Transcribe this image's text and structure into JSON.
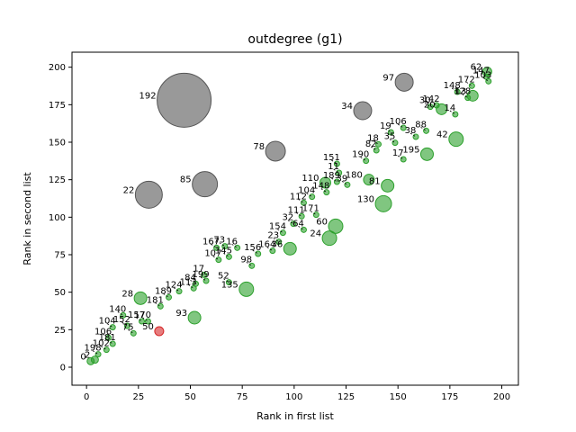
{
  "chart_data": {
    "type": "scatter",
    "title": "outdegree (g1)",
    "xlabel": "Rank in first list",
    "ylabel": "Rank in second list",
    "xlim": [
      -7,
      208
    ],
    "ylim": [
      -12,
      210
    ],
    "xticks": [
      0,
      25,
      50,
      75,
      100,
      125,
      150,
      175,
      200
    ],
    "yticks": [
      0,
      25,
      50,
      75,
      100,
      125,
      150,
      175,
      200
    ],
    "grid": false,
    "legend": "none",
    "colors": {
      "green": "#2ca02c",
      "gray": "#555555",
      "red": "#d62728",
      "connector": "#000000"
    },
    "labeled_points": [
      {
        "label": "192",
        "x": 47,
        "y": 178,
        "size": 30,
        "color": "gray"
      },
      {
        "label": "22",
        "x": 30,
        "y": 115,
        "size": 15,
        "color": "gray"
      },
      {
        "label": "85",
        "x": 57,
        "y": 122,
        "size": 14,
        "color": "gray"
      },
      {
        "label": "78",
        "x": 91,
        "y": 144,
        "size": 11,
        "color": "gray"
      },
      {
        "label": "34",
        "x": 133,
        "y": 171,
        "size": 10,
        "color": "gray"
      },
      {
        "label": "97",
        "x": 153,
        "y": 190,
        "size": 10,
        "color": "gray"
      },
      {
        "label": "130",
        "x": 143,
        "y": 109,
        "size": 9,
        "color": "green"
      },
      {
        "label": "24",
        "x": 117,
        "y": 86,
        "size": 8,
        "color": "green"
      },
      {
        "label": "60",
        "x": 120,
        "y": 94,
        "size": 8,
        "color": "green"
      },
      {
        "label": "42",
        "x": 178,
        "y": 152,
        "size": 8,
        "color": "green"
      },
      {
        "label": "135",
        "x": 77,
        "y": 52,
        "size": 8,
        "color": "green"
      },
      {
        "label": "93",
        "x": 52,
        "y": 33,
        "size": 7,
        "color": "green"
      },
      {
        "label": "28",
        "x": 26,
        "y": 46,
        "size": 7,
        "color": "green"
      },
      {
        "label": "36",
        "x": 98,
        "y": 79,
        "size": 7,
        "color": "green"
      },
      {
        "label": "81",
        "x": 145,
        "y": 121,
        "size": 7,
        "color": "green"
      },
      {
        "label": "195",
        "x": 164,
        "y": 142,
        "size": 7,
        "color": "green"
      },
      {
        "label": "110",
        "x": 115,
        "y": 123,
        "size": 6,
        "color": "green"
      },
      {
        "label": "180",
        "x": 136,
        "y": 125,
        "size": 6,
        "color": "green"
      },
      {
        "label": "20",
        "x": 171,
        "y": 172,
        "size": 6,
        "color": "green"
      },
      {
        "label": "13",
        "x": 186,
        "y": 181,
        "size": 6,
        "color": "green"
      },
      {
        "label": "62",
        "x": 193,
        "y": 197,
        "size": 5,
        "color": "green"
      },
      {
        "label": "50",
        "x": 35,
        "y": 24,
        "size": 5,
        "color": "red"
      },
      {
        "label": "2",
        "x": 4,
        "y": 5,
        "size": 4,
        "color": "green"
      },
      {
        "label": "0",
        "x": 2,
        "y": 4,
        "size": 4,
        "color": "green"
      }
    ],
    "annotation_labels": [
      {
        "text": "151",
        "x": 118,
        "y": 138
      },
      {
        "text": "190",
        "x": 132,
        "y": 140
      },
      {
        "text": "17",
        "x": 150,
        "y": 141
      },
      {
        "text": "82",
        "x": 137,
        "y": 147
      },
      {
        "text": "18",
        "x": 138,
        "y": 151
      },
      {
        "text": "35",
        "x": 146,
        "y": 152
      },
      {
        "text": "38",
        "x": 156,
        "y": 156
      },
      {
        "text": "88",
        "x": 161,
        "y": 160
      },
      {
        "text": "19",
        "x": 144,
        "y": 159
      },
      {
        "text": "106",
        "x": 150,
        "y": 162
      },
      {
        "text": "11",
        "x": 119,
        "y": 132
      },
      {
        "text": "189",
        "x": 118,
        "y": 126
      },
      {
        "text": "39",
        "x": 123,
        "y": 124
      },
      {
        "text": "148",
        "x": 113,
        "y": 119
      },
      {
        "text": "104",
        "x": 106,
        "y": 116
      },
      {
        "text": "112",
        "x": 102,
        "y": 112
      },
      {
        "text": "171",
        "x": 108,
        "y": 104
      },
      {
        "text": "111",
        "x": 101,
        "y": 103
      },
      {
        "text": "32",
        "x": 97,
        "y": 98
      },
      {
        "text": "64",
        "x": 102,
        "y": 94
      },
      {
        "text": "154",
        "x": 92,
        "y": 92
      },
      {
        "text": "23",
        "x": 90,
        "y": 86
      },
      {
        "text": "164",
        "x": 87,
        "y": 80
      },
      {
        "text": "16",
        "x": 70,
        "y": 82
      },
      {
        "text": "145",
        "x": 66,
        "y": 76
      },
      {
        "text": "156",
        "x": 80,
        "y": 78
      },
      {
        "text": "98",
        "x": 77,
        "y": 70
      },
      {
        "text": "73",
        "x": 64,
        "y": 83
      },
      {
        "text": "167",
        "x": 60,
        "y": 82
      },
      {
        "text": "107",
        "x": 61,
        "y": 74
      },
      {
        "text": "17",
        "x": 54,
        "y": 64
      },
      {
        "text": "199",
        "x": 55,
        "y": 60
      },
      {
        "text": "52",
        "x": 66,
        "y": 59
      },
      {
        "text": "84",
        "x": 50,
        "y": 58
      },
      {
        "text": "113",
        "x": 49,
        "y": 55
      },
      {
        "text": "124",
        "x": 42,
        "y": 53
      },
      {
        "text": "189",
        "x": 37,
        "y": 49
      },
      {
        "text": "181",
        "x": 33,
        "y": 43
      },
      {
        "text": "140",
        "x": 15,
        "y": 37
      },
      {
        "text": "157",
        "x": 24,
        "y": 33
      },
      {
        "text": "104",
        "x": 10,
        "y": 29
      },
      {
        "text": "152",
        "x": 17,
        "y": 30
      },
      {
        "text": "75",
        "x": 20,
        "y": 25
      },
      {
        "text": "106",
        "x": 8,
        "y": 22
      },
      {
        "text": "170",
        "x": 27,
        "y": 33
      },
      {
        "text": "181",
        "x": 10,
        "y": 18
      },
      {
        "text": "198",
        "x": 3,
        "y": 11
      },
      {
        "text": "102",
        "x": 7,
        "y": 14
      },
      {
        "text": "14",
        "x": 175,
        "y": 171
      },
      {
        "text": "30",
        "x": 163,
        "y": 176
      },
      {
        "text": "147",
        "x": 190,
        "y": 196
      },
      {
        "text": "172",
        "x": 183,
        "y": 190
      },
      {
        "text": "128",
        "x": 181,
        "y": 182
      },
      {
        "text": "148",
        "x": 176,
        "y": 186
      },
      {
        "text": "142",
        "x": 166,
        "y": 177
      },
      {
        "text": "103",
        "x": 191,
        "y": 193
      }
    ]
  }
}
